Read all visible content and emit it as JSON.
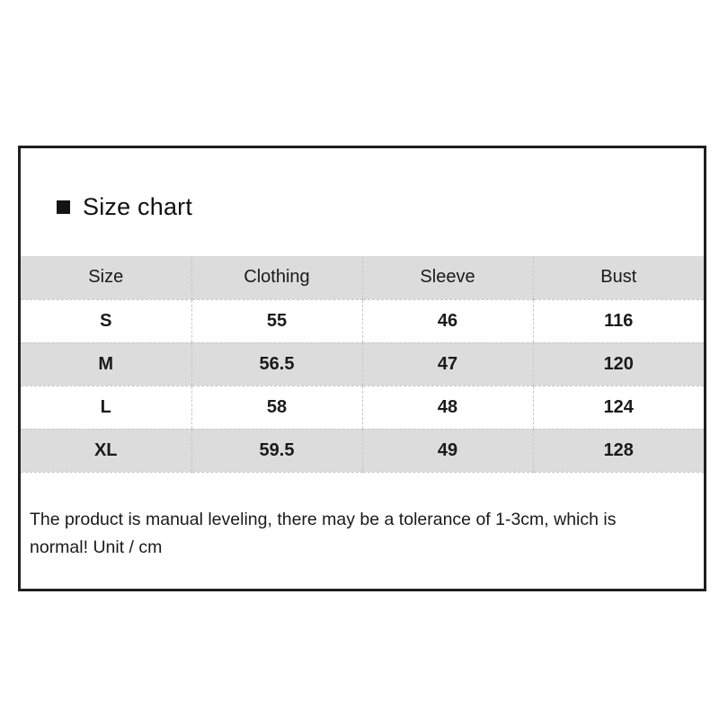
{
  "title": {
    "bullet_icon": "black-square",
    "text": "Size chart"
  },
  "size_table": {
    "columns": [
      "Size",
      "Clothing",
      "Sleeve",
      "Bust"
    ],
    "rows": [
      [
        "S",
        "55",
        "46",
        "116"
      ],
      [
        "M",
        "56.5",
        "47",
        "120"
      ],
      [
        "L",
        "58",
        "48",
        "124"
      ],
      [
        "XL",
        "59.5",
        "49",
        "128"
      ]
    ]
  },
  "footnote": {
    "lines": [
      "The product is manual leveling, there may be a tolerance of 1-3cm, which is",
      "normal! Unit / cm"
    ]
  },
  "colors": {
    "card_border": "#1f1f1f",
    "header_row_bg": "#dcdcdc",
    "odd_row_bg": "#dcdcdc",
    "even_row_bg": "#ffffff",
    "dashed_divider": "#c6c6c6",
    "text": "#1a1a1a",
    "background": "#ffffff"
  }
}
